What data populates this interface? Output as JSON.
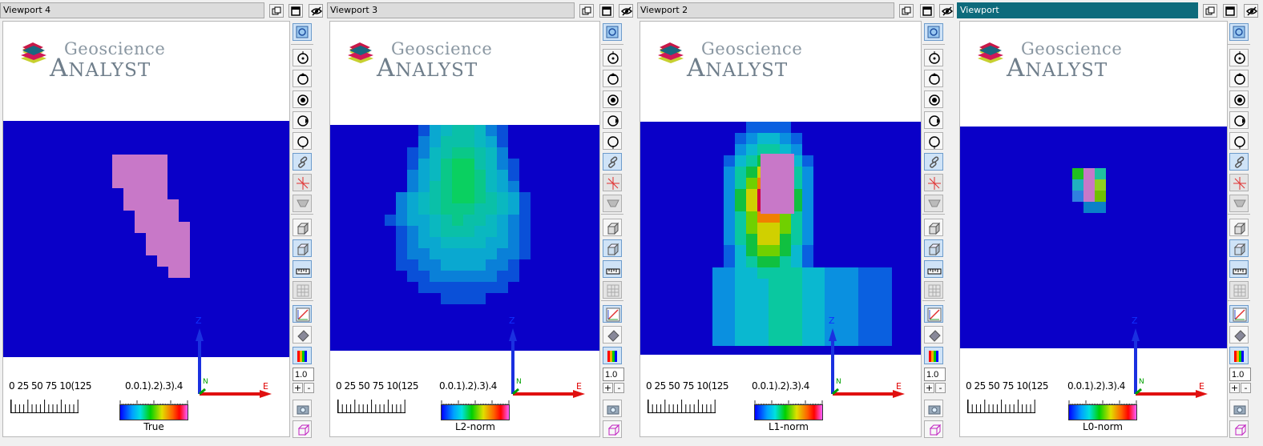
{
  "viewports": [
    {
      "title": "Viewport 4",
      "active": false,
      "colorbar_label": "True"
    },
    {
      "title": "Viewport 3",
      "active": false,
      "colorbar_label": "L2-norm"
    },
    {
      "title": "Viewport 2",
      "active": false,
      "colorbar_label": "L1-norm"
    },
    {
      "title": "Viewport",
      "active": true,
      "colorbar_label": "L0-norm"
    }
  ],
  "logo": {
    "line1": "Geoscience",
    "line2_big": "A",
    "line2_small": "NALYST"
  },
  "scale_ticks_text": "0  25 50 75 10(125",
  "colorbar_ticks_text": "0.0.1).2).3).4",
  "zoom_value": "1.0",
  "zoom_plus": "+",
  "zoom_minus": "-",
  "axes": {
    "z": "Z",
    "e": "E",
    "n": "N"
  },
  "titlebar_buttons": [
    "restore-icon",
    "maximize-icon",
    "visibility-icon"
  ],
  "toolbar_icons": [
    "zoom-extents-icon",
    "rotate-top-icon",
    "rotate-front-icon",
    "target-icon",
    "rotate-side-icon",
    "rotate-back-icon",
    "link-icon",
    "crosshair-icon",
    "clip-plane-icon",
    "box-view-icon",
    "box-grid-icon",
    "ruler-icon",
    "grid-icon",
    "axes-icon",
    "light-icon",
    "colorbar-icon",
    "snapshot-icon",
    "cube-icon"
  ],
  "colors": {
    "background_blue": "#0a00c8",
    "active_title": "#0e6b7c",
    "model_pink": "#c878c8"
  }
}
